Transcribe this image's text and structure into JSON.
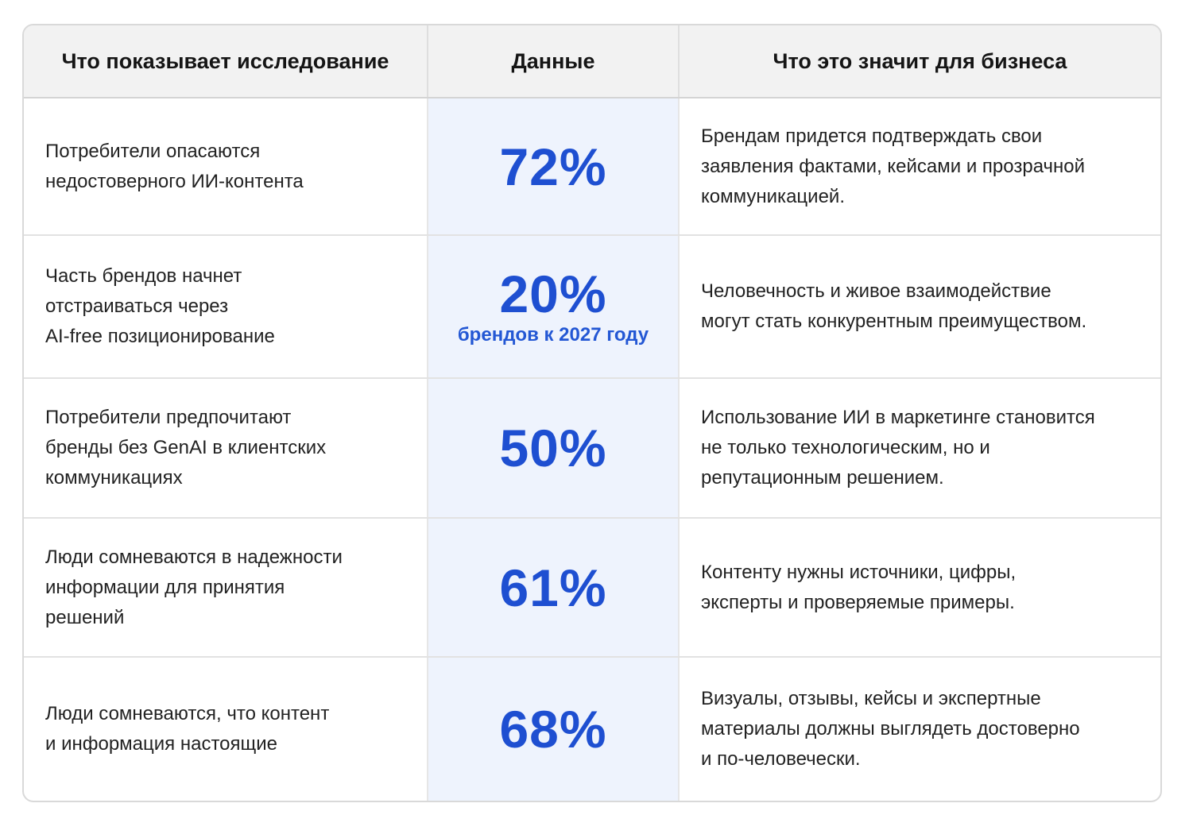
{
  "headers": {
    "finding": "Что показывает исследование",
    "data": "Данные",
    "meaning": "Что это значит для бизнеса"
  },
  "rows": [
    {
      "finding_lines": [
        "Потребители опасаются",
        "недостоверного ИИ-контента"
      ],
      "value": "72%",
      "value_note": "",
      "meaning_lines": [
        "Брендам придется подтверждать свои",
        "заявления фактами, кейсами и прозрачной",
        "коммуникацией."
      ]
    },
    {
      "finding_lines": [
        "Часть брендов начнет",
        "отстраиваться через",
        "AI-free позиционирование"
      ],
      "value": "20%",
      "value_note": "брендов к 2027 году",
      "meaning_lines": [
        "Человечность и живое взаимодействие",
        "могут стать конкурентным преимуществом."
      ]
    },
    {
      "finding_lines": [
        "Потребители предпочитают",
        "бренды без GenAI в клиентских",
        "коммуникациях"
      ],
      "value": "50%",
      "value_note": "",
      "meaning_lines": [
        "Использование ИИ в маркетинге становится",
        "не только технологическим, но и",
        "репутационным решением."
      ]
    },
    {
      "finding_lines": [
        "Люди сомневаются в надежности",
        "информации для принятия",
        "решений"
      ],
      "value": "61%",
      "value_note": "",
      "meaning_lines": [
        "Контенту нужны источники, цифры,",
        "эксперты и проверяемые примеры."
      ]
    },
    {
      "finding_lines": [
        "Люди сомневаются, что контент",
        "и информация настоящие"
      ],
      "value": "68%",
      "value_note": "",
      "meaning_lines": [
        "Визуалы, отзывы, кейсы и экспертные",
        "материалы должны выглядеть достоверно",
        "и по-человечески."
      ]
    }
  ],
  "colors": {
    "accent": "#1e4fd1",
    "data_column_bg": "#eef3fd",
    "header_bg": "#f2f2f2"
  }
}
